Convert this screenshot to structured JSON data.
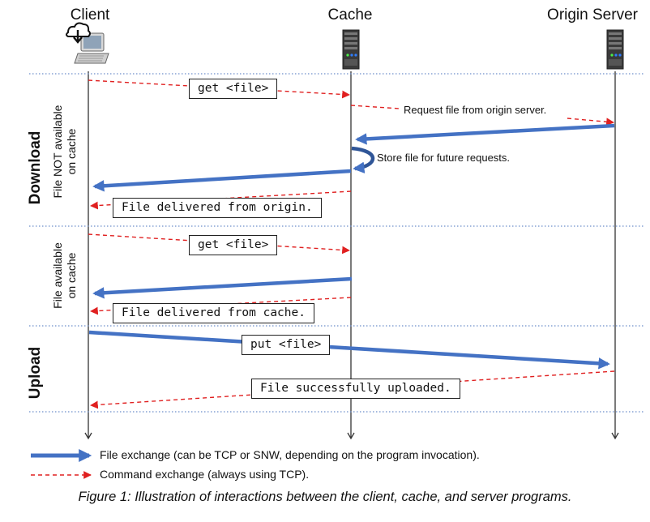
{
  "actors": {
    "client": "Client",
    "cache": "Cache",
    "origin": "Origin Server"
  },
  "sections": {
    "download": "Download",
    "upload": "Upload",
    "not_available_line1": "File NOT available",
    "not_available_line2": "on cache",
    "available_line1": "File available",
    "available_line2": "on cache"
  },
  "messages": {
    "get_file_1": "get <file>",
    "request_origin": "Request file from origin server.",
    "store_file": "Store file for future requests.",
    "delivered_origin": "File delivered from origin.",
    "get_file_2": "get <file>",
    "delivered_cache": "File delivered from cache.",
    "put_file": "put <file>",
    "uploaded": "File successfully uploaded."
  },
  "legend": {
    "file_exchange": "File exchange (can be TCP or SNW, depending on the program invocation).",
    "command_exchange": "Command exchange (always using TCP)."
  },
  "caption": "Figure 1: Illustration of interactions between the client, cache, and server programs.",
  "colors": {
    "file_arrow": "#4472C4",
    "command_arrow": "#E02020",
    "separator": "#6E8FCB"
  }
}
